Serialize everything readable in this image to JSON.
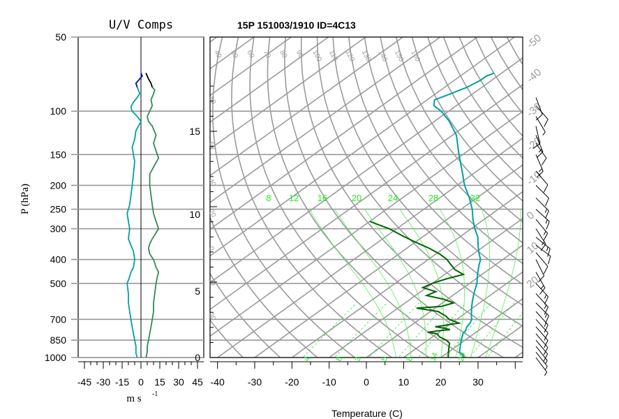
{
  "chart_data": [
    {
      "type": "line",
      "title": "U/V Comps",
      "ylabel": "P (hPa)",
      "xlabel": "m s",
      "xlabel_exp": "-1",
      "yticks": [
        1000,
        850,
        700,
        500,
        400,
        300,
        250,
        200,
        150,
        100,
        50
      ],
      "xticks": [
        -45,
        -30,
        -15,
        0,
        15,
        30,
        45
      ],
      "xlim": [
        -50,
        50
      ],
      "ylim": [
        1000,
        50
      ],
      "y_scale": "log",
      "grid": true,
      "series": [
        {
          "color": "#00a0a0",
          "points": [
            [
              1000,
              -3
            ],
            [
              960,
              -4
            ],
            [
              900,
              -4
            ],
            [
              850,
              -5
            ],
            [
              800,
              -6
            ],
            [
              750,
              -7
            ],
            [
              700,
              -8
            ],
            [
              650,
              -9
            ],
            [
              600,
              -10
            ],
            [
              550,
              -10
            ],
            [
              500,
              -11
            ],
            [
              470,
              -9
            ],
            [
              450,
              -8
            ],
            [
              430,
              -6
            ],
            [
              400,
              -5
            ],
            [
              370,
              -6
            ],
            [
              350,
              -8
            ],
            [
              330,
              -10
            ],
            [
              300,
              -9
            ],
            [
              280,
              -10
            ],
            [
              260,
              -11
            ],
            [
              240,
              -9
            ],
            [
              220,
              -8
            ],
            [
              200,
              -7
            ],
            [
              180,
              -6
            ],
            [
              160,
              -5
            ],
            [
              150,
              -6
            ],
            [
              140,
              -7
            ],
            [
              130,
              -5
            ],
            [
              120,
              -4
            ],
            [
              115,
              -2
            ],
            [
              110,
              0
            ],
            [
              105,
              -3
            ],
            [
              100,
              -7
            ],
            [
              96,
              -8
            ],
            [
              92,
              -6
            ],
            [
              88,
              -3
            ],
            [
              85,
              -1
            ],
            [
              82,
              -2
            ],
            [
              80,
              -3
            ]
          ]
        },
        {
          "color": "#2e8b57",
          "points": [
            [
              1000,
              4
            ],
            [
              950,
              5
            ],
            [
              900,
              5
            ],
            [
              850,
              6
            ],
            [
              800,
              7
            ],
            [
              750,
              8
            ],
            [
              700,
              9
            ],
            [
              650,
              10
            ],
            [
              600,
              10
            ],
            [
              550,
              11
            ],
            [
              500,
              12
            ],
            [
              470,
              13
            ],
            [
              450,
              14
            ],
            [
              430,
              12
            ],
            [
              400,
              10
            ],
            [
              380,
              7
            ],
            [
              360,
              6
            ],
            [
              345,
              7
            ],
            [
              330,
              9
            ],
            [
              300,
              14
            ],
            [
              280,
              12
            ],
            [
              260,
              10
            ],
            [
              240,
              9
            ],
            [
              220,
              8
            ],
            [
              200,
              7
            ],
            [
              180,
              7
            ],
            [
              165,
              11
            ],
            [
              155,
              14
            ],
            [
              145,
              12
            ],
            [
              135,
              10
            ],
            [
              125,
              12
            ],
            [
              115,
              9
            ],
            [
              110,
              6
            ],
            [
              105,
              5
            ],
            [
              100,
              7
            ],
            [
              95,
              9
            ],
            [
              90,
              8
            ],
            [
              85,
              10
            ],
            [
              82,
              11
            ],
            [
              80,
              9
            ]
          ]
        },
        {
          "color": "#0000cc",
          "points": [
            [
              80,
              -3
            ],
            [
              77,
              -4
            ],
            [
              74,
              -1
            ],
            [
              72,
              1
            ],
            [
              70,
              0
            ]
          ]
        },
        {
          "color": "#000000",
          "points": [
            [
              80,
              9
            ],
            [
              77,
              8
            ],
            [
              74,
              6
            ],
            [
              72,
              5
            ],
            [
              70,
              4
            ]
          ]
        }
      ]
    },
    {
      "type": "line",
      "title": "15P 151003/1910 ID=4C13",
      "xlabel": "Temperature (C)",
      "xticks": [
        -40,
        -30,
        -20,
        -10,
        0,
        10,
        20,
        30
      ],
      "xlim": [
        -42,
        42
      ],
      "ylim": [
        1000,
        50
      ],
      "y_scale": "log",
      "height_ticks_km": [
        0,
        5,
        10,
        15
      ],
      "isotherm_labels": [
        "-50",
        "-40",
        "-30",
        "-20",
        "-10",
        "0",
        "10",
        "20"
      ],
      "dry_adiabat_labels": [
        "40",
        "50",
        "60",
        "70",
        "80",
        "90",
        "100",
        "110",
        "120",
        "130",
        "140",
        "150",
        "160"
      ],
      "mixing_ratio_labels": [
        "8",
        "12",
        "16",
        "20",
        "24",
        "28",
        "32"
      ],
      "bottom_green_labels": [
        "4",
        "8",
        "3",
        "5",
        "8",
        "14",
        "20"
      ],
      "left_angled_labels": [
        "80",
        "60",
        "40",
        "20",
        "0",
        "20",
        "30",
        "40",
        "50",
        "60"
      ],
      "grid": true,
      "series": [
        {
          "name": "Temperature",
          "color": "#00a0a0",
          "points": [
            [
              1000,
              26
            ],
            [
              975,
              25
            ],
            [
              950,
              23
            ],
            [
              925,
              22
            ],
            [
              900,
              21
            ],
            [
              875,
              20
            ],
            [
              850,
              19
            ],
            [
              825,
              18
            ],
            [
              800,
              17
            ],
            [
              775,
              16.5
            ],
            [
              750,
              15.5
            ],
            [
              725,
              15
            ],
            [
              700,
              14
            ],
            [
              675,
              12.5
            ],
            [
              650,
              11
            ],
            [
              625,
              9.5
            ],
            [
              600,
              8
            ],
            [
              575,
              6.5
            ],
            [
              550,
              5
            ],
            [
              525,
              3.5
            ],
            [
              500,
              2
            ],
            [
              475,
              0
            ],
            [
              450,
              -2
            ],
            [
              425,
              -4
            ],
            [
              400,
              -6
            ],
            [
              375,
              -9
            ],
            [
              350,
              -12
            ],
            [
              325,
              -15
            ],
            [
              300,
              -19
            ],
            [
              275,
              -23
            ],
            [
              250,
              -27
            ],
            [
              225,
              -32
            ],
            [
              200,
              -38
            ],
            [
              175,
              -44
            ],
            [
              150,
              -51
            ],
            [
              125,
              -59
            ],
            [
              110,
              -66
            ],
            [
              100,
              -72
            ],
            [
              95,
              -76
            ],
            [
              90,
              -78
            ],
            [
              85,
              -76
            ],
            [
              80,
              -74
            ],
            [
              75,
              -73
            ],
            [
              72,
              -73
            ],
            [
              70,
              -72
            ]
          ]
        },
        {
          "name": "Dewpoint",
          "color": "#006400",
          "points": [
            [
              1000,
              22
            ],
            [
              950,
              20
            ],
            [
              925,
              19
            ],
            [
              900,
              18
            ],
            [
              875,
              17
            ],
            [
              850,
              15
            ],
            [
              825,
              12
            ],
            [
              800,
              10
            ],
            [
              790,
              7
            ],
            [
              780,
              9
            ],
            [
              770,
              12
            ],
            [
              760,
              10
            ],
            [
              750,
              7
            ],
            [
              740,
              9
            ],
            [
              725,
              12
            ],
            [
              700,
              8
            ],
            [
              680,
              6
            ],
            [
              650,
              2
            ],
            [
              630,
              -5
            ],
            [
              620,
              1
            ],
            [
              600,
              3
            ],
            [
              580,
              -1
            ],
            [
              560,
              -7
            ],
            [
              540,
              -6
            ],
            [
              520,
              -11
            ],
            [
              500,
              -10
            ],
            [
              480,
              -8
            ],
            [
              460,
              -5
            ],
            [
              440,
              -9
            ],
            [
              420,
              -12
            ],
            [
              400,
              -15
            ],
            [
              380,
              -19
            ],
            [
              360,
              -24
            ],
            [
              340,
              -30
            ],
            [
              320,
              -36
            ],
            [
              300,
              -42
            ],
            [
              290,
              -46
            ],
            [
              280,
              -50
            ]
          ]
        }
      ],
      "wind_barbs": [
        {
          "p": 1000,
          "u": -3,
          "v": 4
        },
        {
          "p": 950,
          "u": -4,
          "v": 5
        },
        {
          "p": 900,
          "u": -4,
          "v": 5
        },
        {
          "p": 850,
          "u": -5,
          "v": 6
        },
        {
          "p": 800,
          "u": -6,
          "v": 7
        },
        {
          "p": 750,
          "u": -7,
          "v": 8
        },
        {
          "p": 700,
          "u": -8,
          "v": 9
        },
        {
          "p": 650,
          "u": -9,
          "v": 10
        },
        {
          "p": 600,
          "u": -10,
          "v": 10
        },
        {
          "p": 550,
          "u": -10,
          "v": 11
        },
        {
          "p": 500,
          "u": -11,
          "v": 12
        },
        {
          "p": 450,
          "u": -8,
          "v": 14
        },
        {
          "p": 400,
          "u": -5,
          "v": 10
        },
        {
          "p": 375,
          "u": -6,
          "v": 7
        },
        {
          "p": 350,
          "u": -8,
          "v": 6
        },
        {
          "p": 325,
          "u": -10,
          "v": 8
        },
        {
          "p": 300,
          "u": -9,
          "v": 14
        },
        {
          "p": 275,
          "u": -10,
          "v": 12
        },
        {
          "p": 250,
          "u": -11,
          "v": 10
        },
        {
          "p": 225,
          "u": -9,
          "v": 9
        },
        {
          "p": 200,
          "u": -7,
          "v": 7
        },
        {
          "p": 175,
          "u": -6,
          "v": 7
        },
        {
          "p": 150,
          "u": -6,
          "v": 14
        },
        {
          "p": 135,
          "u": -7,
          "v": 10
        },
        {
          "p": 125,
          "u": -5,
          "v": 12
        },
        {
          "p": 115,
          "u": -2,
          "v": 9
        },
        {
          "p": 105,
          "u": -3,
          "v": 5
        },
        {
          "p": 95,
          "u": -8,
          "v": 9
        },
        {
          "p": 88,
          "u": -3,
          "v": 8
        }
      ]
    }
  ]
}
